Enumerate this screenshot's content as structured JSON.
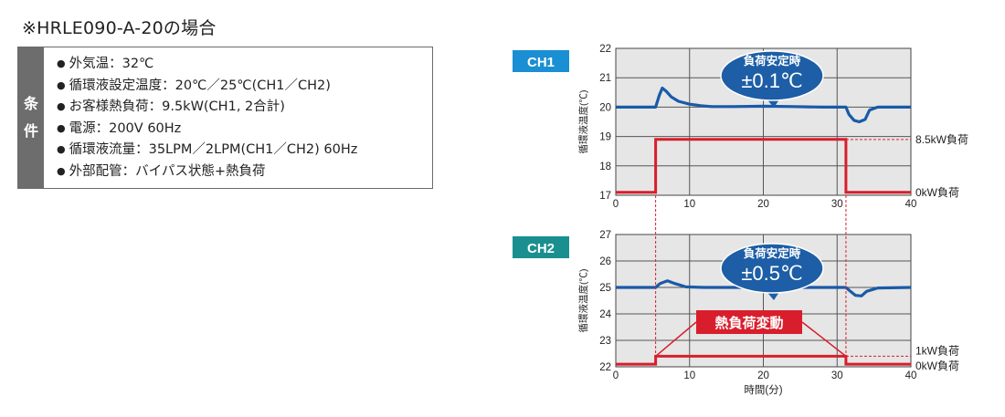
{
  "heading": "※HRLE090-A-20の場合",
  "conditions": {
    "label_chars": [
      "条",
      "件"
    ],
    "items": [
      "外気温：32℃",
      "循環液設定温度：20℃／25℃(CH1／CH2)",
      "お客様熱負荷：9.5kW(CH1, 2合計)",
      "電源：200V 60Hz",
      "循環液流量：35LPM／2LPM(CH1／CH2) 60Hz",
      "外部配管：バイパス状態+熱負荷"
    ]
  },
  "colors": {
    "temp_line": "#1a5aa8",
    "load_line": "#d81e2c",
    "ch1_tag": "#1a8fd3",
    "ch2_tag": "#1a8f8f",
    "bubble": "#1d5ea6",
    "plot_bg": "#e6e6e6",
    "cond_label_bg": "#6d6d6d"
  },
  "chart_data": [
    {
      "type": "line",
      "channel_tag": "CH1",
      "ylabel": "循環液温度(℃)",
      "xlabel": "",
      "xlim": [
        0,
        40
      ],
      "ylim": [
        17,
        22
      ],
      "x_ticks": [
        0,
        10,
        20,
        30,
        40
      ],
      "y_ticks": [
        17,
        18,
        19,
        20,
        21,
        22
      ],
      "grid": true,
      "callout": {
        "title": "負荷安定時",
        "value": "±0.1℃"
      },
      "series": [
        {
          "kind": "temperature",
          "points": [
            [
              0,
              20.0
            ],
            [
              5.4,
              20.0
            ],
            [
              5.9,
              20.4
            ],
            [
              6.3,
              20.65
            ],
            [
              6.8,
              20.55
            ],
            [
              7.5,
              20.35
            ],
            [
              8.5,
              20.2
            ],
            [
              10,
              20.1
            ],
            [
              11.5,
              20.05
            ],
            [
              13,
              20.02
            ],
            [
              16,
              20.02
            ],
            [
              20,
              20.03
            ],
            [
              24,
              20.02
            ],
            [
              28,
              20.0
            ],
            [
              31.2,
              20.0
            ],
            [
              31.6,
              19.75
            ],
            [
              32.3,
              19.55
            ],
            [
              33.0,
              19.5
            ],
            [
              33.8,
              19.58
            ],
            [
              34.4,
              19.9
            ],
            [
              35.5,
              20.0
            ],
            [
              40,
              20.0
            ]
          ]
        },
        {
          "kind": "load",
          "points": [
            [
              0,
              17.1
            ],
            [
              5.4,
              17.1
            ],
            [
              5.4,
              18.9
            ],
            [
              31.2,
              18.9
            ],
            [
              31.2,
              17.1
            ],
            [
              40,
              17.1
            ]
          ],
          "labels": [
            {
              "text": "8.5kW負荷",
              "y": 18.9
            },
            {
              "text": "0kW負荷",
              "y": 17.1
            }
          ]
        }
      ]
    },
    {
      "type": "line",
      "channel_tag": "CH2",
      "ylabel": "循環液温度(℃)",
      "xlabel": "時間(分)",
      "xlim": [
        0,
        40
      ],
      "ylim": [
        22,
        27
      ],
      "x_ticks": [
        0,
        10,
        20,
        30,
        40
      ],
      "y_ticks": [
        22,
        23,
        24,
        25,
        26,
        27
      ],
      "grid": true,
      "callout": {
        "title": "負荷安定時",
        "value": "±0.5℃"
      },
      "annotation": "熱負荷変動",
      "series": [
        {
          "kind": "temperature",
          "points": [
            [
              0,
              25.0
            ],
            [
              5.4,
              25.0
            ],
            [
              6.0,
              25.15
            ],
            [
              7.0,
              25.25
            ],
            [
              8.0,
              25.15
            ],
            [
              9.5,
              25.02
            ],
            [
              12,
              25.0
            ],
            [
              20,
              25.0
            ],
            [
              28,
              25.0
            ],
            [
              31.2,
              25.0
            ],
            [
              31.8,
              24.85
            ],
            [
              32.5,
              24.7
            ],
            [
              33.3,
              24.68
            ],
            [
              34.0,
              24.85
            ],
            [
              35.5,
              24.98
            ],
            [
              40,
              25.0
            ]
          ]
        },
        {
          "kind": "load",
          "points": [
            [
              0,
              22.1
            ],
            [
              5.4,
              22.1
            ],
            [
              5.4,
              22.4
            ],
            [
              31.2,
              22.4
            ],
            [
              31.2,
              22.1
            ],
            [
              40,
              22.1
            ]
          ],
          "labels": [
            {
              "text": "1kW負荷",
              "y": 22.4
            },
            {
              "text": "0kW負荷",
              "y": 22.1
            }
          ]
        }
      ]
    }
  ]
}
